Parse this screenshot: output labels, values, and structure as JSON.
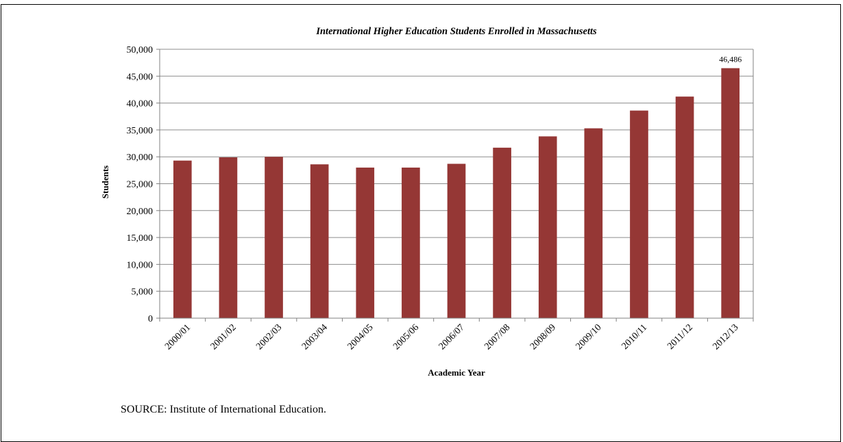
{
  "chart_data": {
    "type": "bar",
    "title": "International Higher Education Students Enrolled in Massachusetts",
    "xlabel": "Academic Year",
    "ylabel": "Students",
    "categories": [
      "2000/01",
      "2001/02",
      "2002/03",
      "2003/04",
      "2004/05",
      "2005/06",
      "2006/07",
      "2007/08",
      "2008/09",
      "2009/10",
      "2010/11",
      "2011/12",
      "2012/13"
    ],
    "values": [
      29300,
      29900,
      30000,
      28600,
      28000,
      28000,
      28700,
      31700,
      33800,
      35300,
      38600,
      41200,
      46486
    ],
    "ylim": [
      0,
      50000
    ],
    "yticks": [
      0,
      5000,
      10000,
      15000,
      20000,
      25000,
      30000,
      35000,
      40000,
      45000,
      50000
    ],
    "ytick_labels": [
      "0",
      "5,000",
      "10,000",
      "15,000",
      "20,000",
      "25,000",
      "30,000",
      "35,000",
      "40,000",
      "45,000",
      "50,000"
    ],
    "grid": true,
    "legend": "none",
    "data_labels": [
      {
        "category": "2012/13",
        "text": "46,486"
      }
    ],
    "colors": {
      "bar": "#953735",
      "grid": "#8c8c8c",
      "axis": "#808080"
    }
  },
  "footer": {
    "source": "SOURCE: Institute of International Education."
  }
}
